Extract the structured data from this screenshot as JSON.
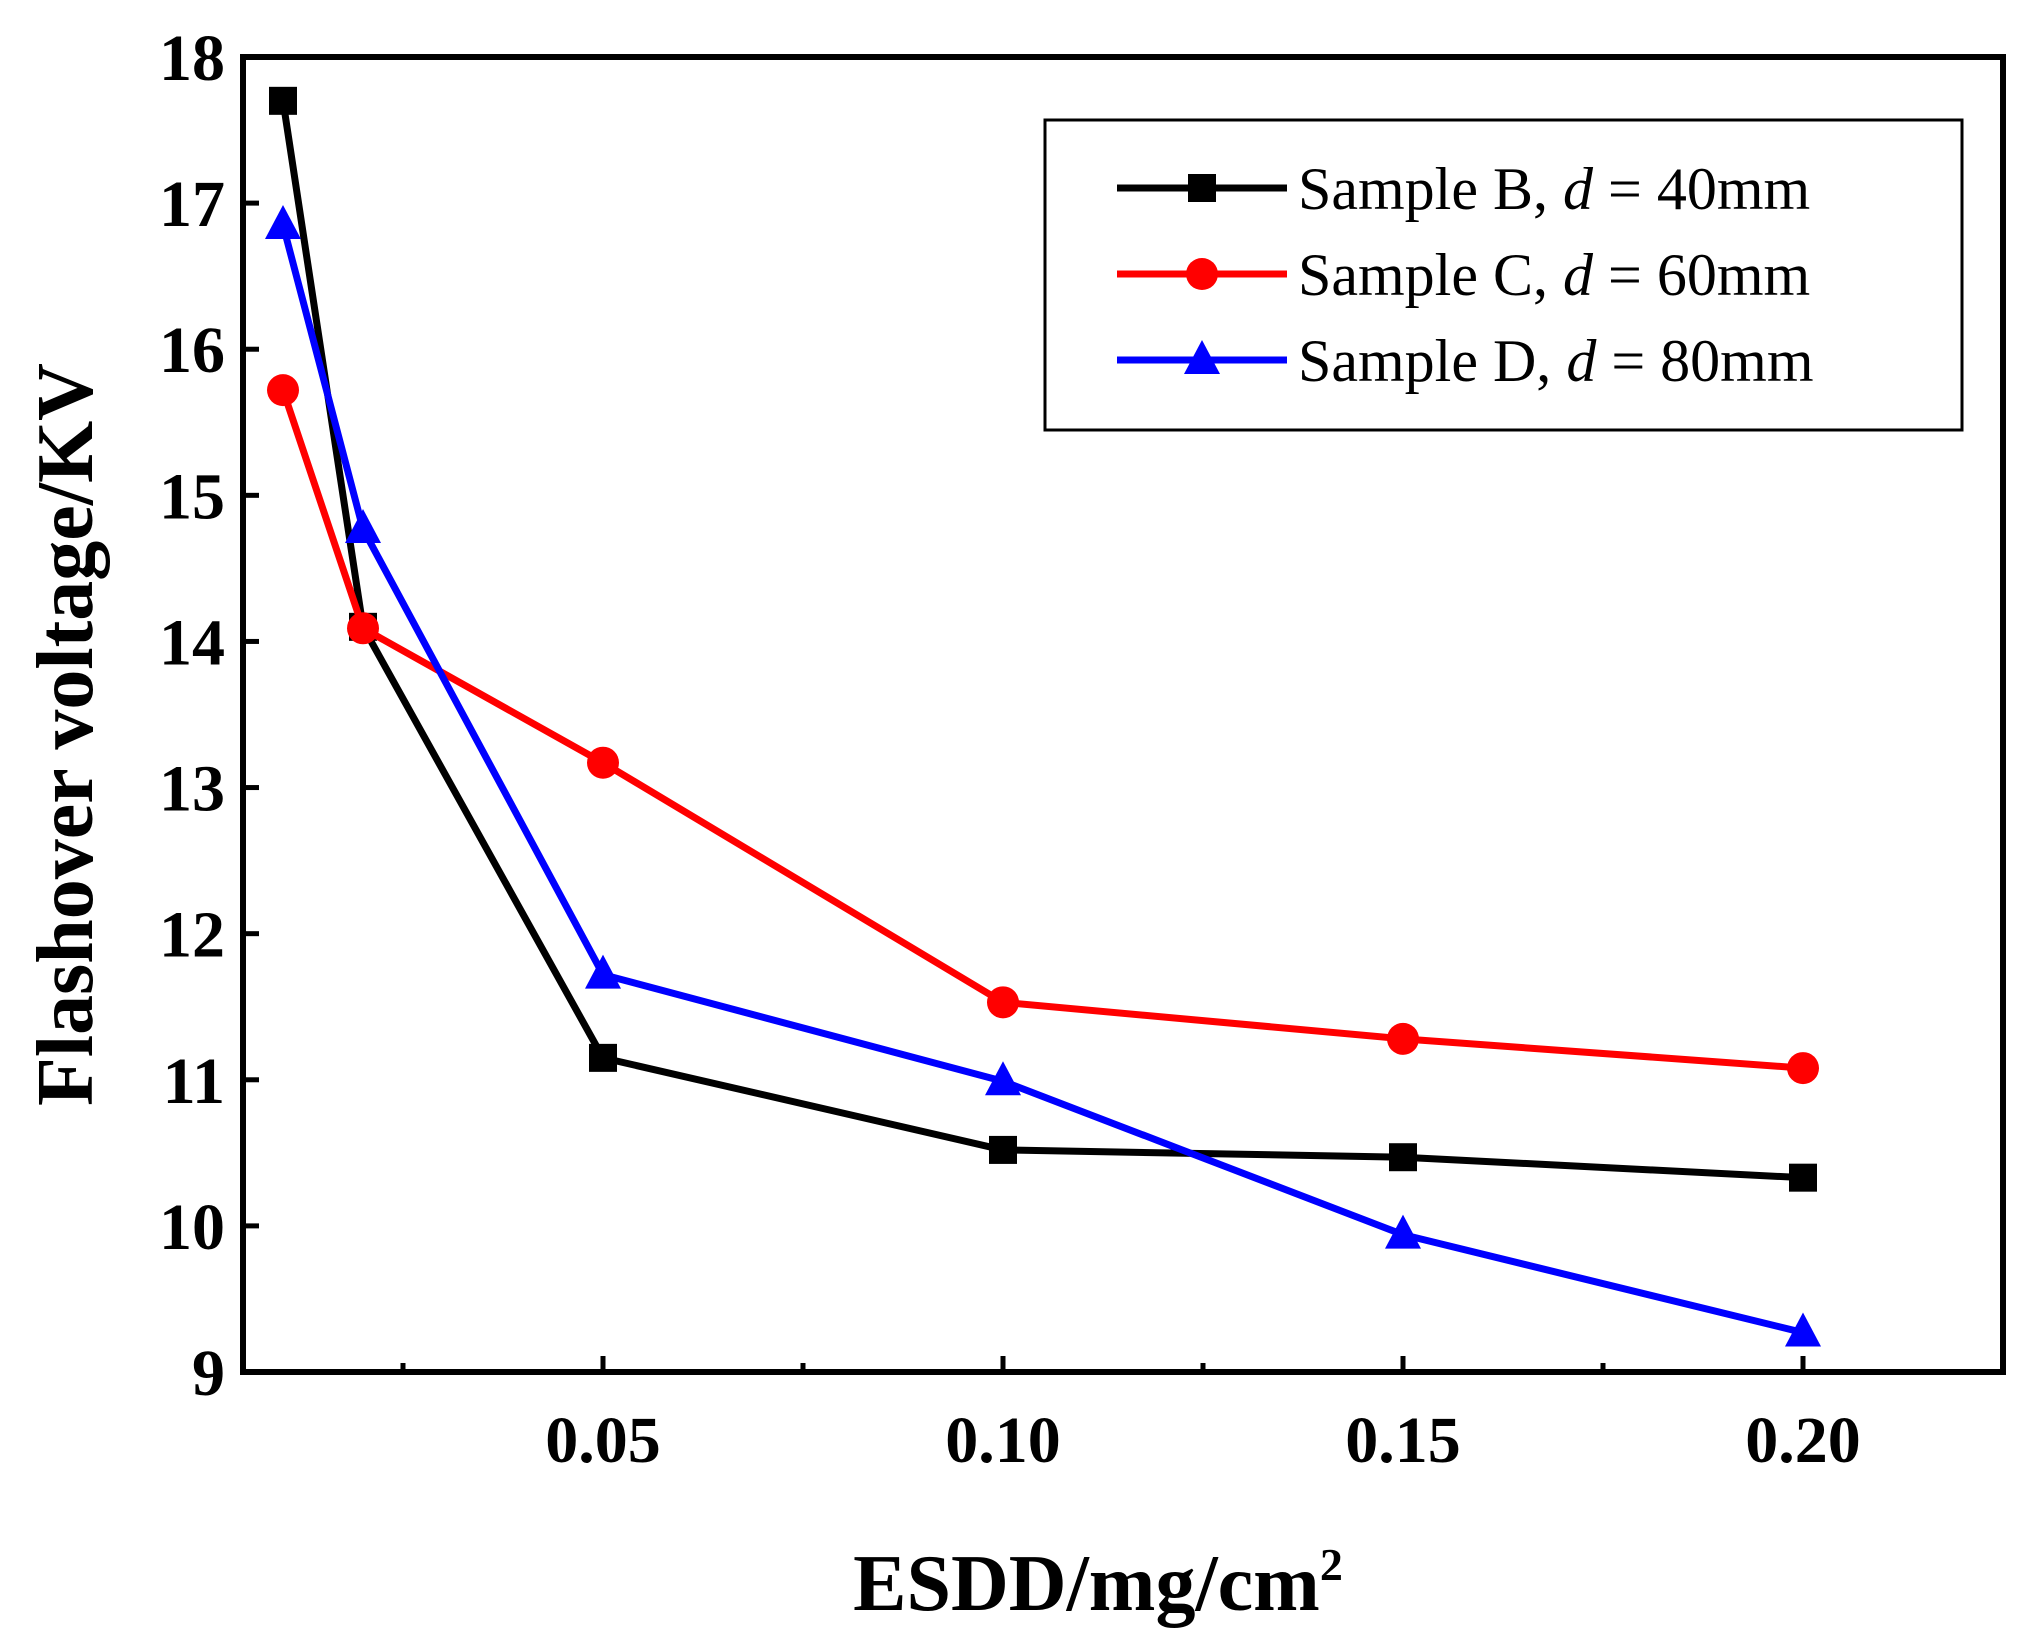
{
  "chart_data": {
    "type": "line",
    "title": "",
    "xlabel": "ESDD/mg/cm",
    "xlabel_superscript": "2",
    "ylabel": "Flashover voltage/KV",
    "xlim": [
      0.005,
      0.225
    ],
    "ylim": [
      9,
      18
    ],
    "x_ticks": [
      0.05,
      0.1,
      0.15,
      0.2
    ],
    "x_tick_labels": [
      "0.05",
      "0.10",
      "0.15",
      "0.20"
    ],
    "x_minor_ticks": [
      0.025,
      0.075,
      0.125,
      0.175
    ],
    "y_ticks": [
      9,
      10,
      11,
      12,
      13,
      14,
      15,
      16,
      17,
      18
    ],
    "y_tick_labels": [
      "9",
      "10",
      "11",
      "12",
      "13",
      "14",
      "15",
      "16",
      "17",
      "18"
    ],
    "grid": false,
    "legend_position": "top-right",
    "series": [
      {
        "name": "Sample B, d = 40mm",
        "legend_prefix": "Sample B, ",
        "legend_var": "d",
        "legend_suffix": " = 40mm",
        "color": "#000000",
        "marker": "square",
        "x": [
          0.01,
          0.02,
          0.05,
          0.1,
          0.15,
          0.2
        ],
        "values": [
          17.7,
          14.1,
          11.15,
          10.52,
          10.47,
          10.33
        ]
      },
      {
        "name": "Sample C, d = 60mm",
        "legend_prefix": "Sample C, ",
        "legend_var": "d",
        "legend_suffix": " = 60mm",
        "color": "#ff0000",
        "marker": "circle",
        "x": [
          0.01,
          0.02,
          0.05,
          0.1,
          0.15,
          0.2
        ],
        "values": [
          15.72,
          14.09,
          13.17,
          11.53,
          11.28,
          11.08
        ]
      },
      {
        "name": "Sample D, d = 80mm",
        "legend_prefix": "Sample D, ",
        "legend_var": "d",
        "legend_suffix": " = 80mm",
        "color": "#0000ff",
        "marker": "triangle",
        "x": [
          0.01,
          0.02,
          0.05,
          0.1,
          0.15,
          0.2
        ],
        "values": [
          16.85,
          14.77,
          11.72,
          10.99,
          9.94,
          9.27
        ]
      }
    ]
  }
}
